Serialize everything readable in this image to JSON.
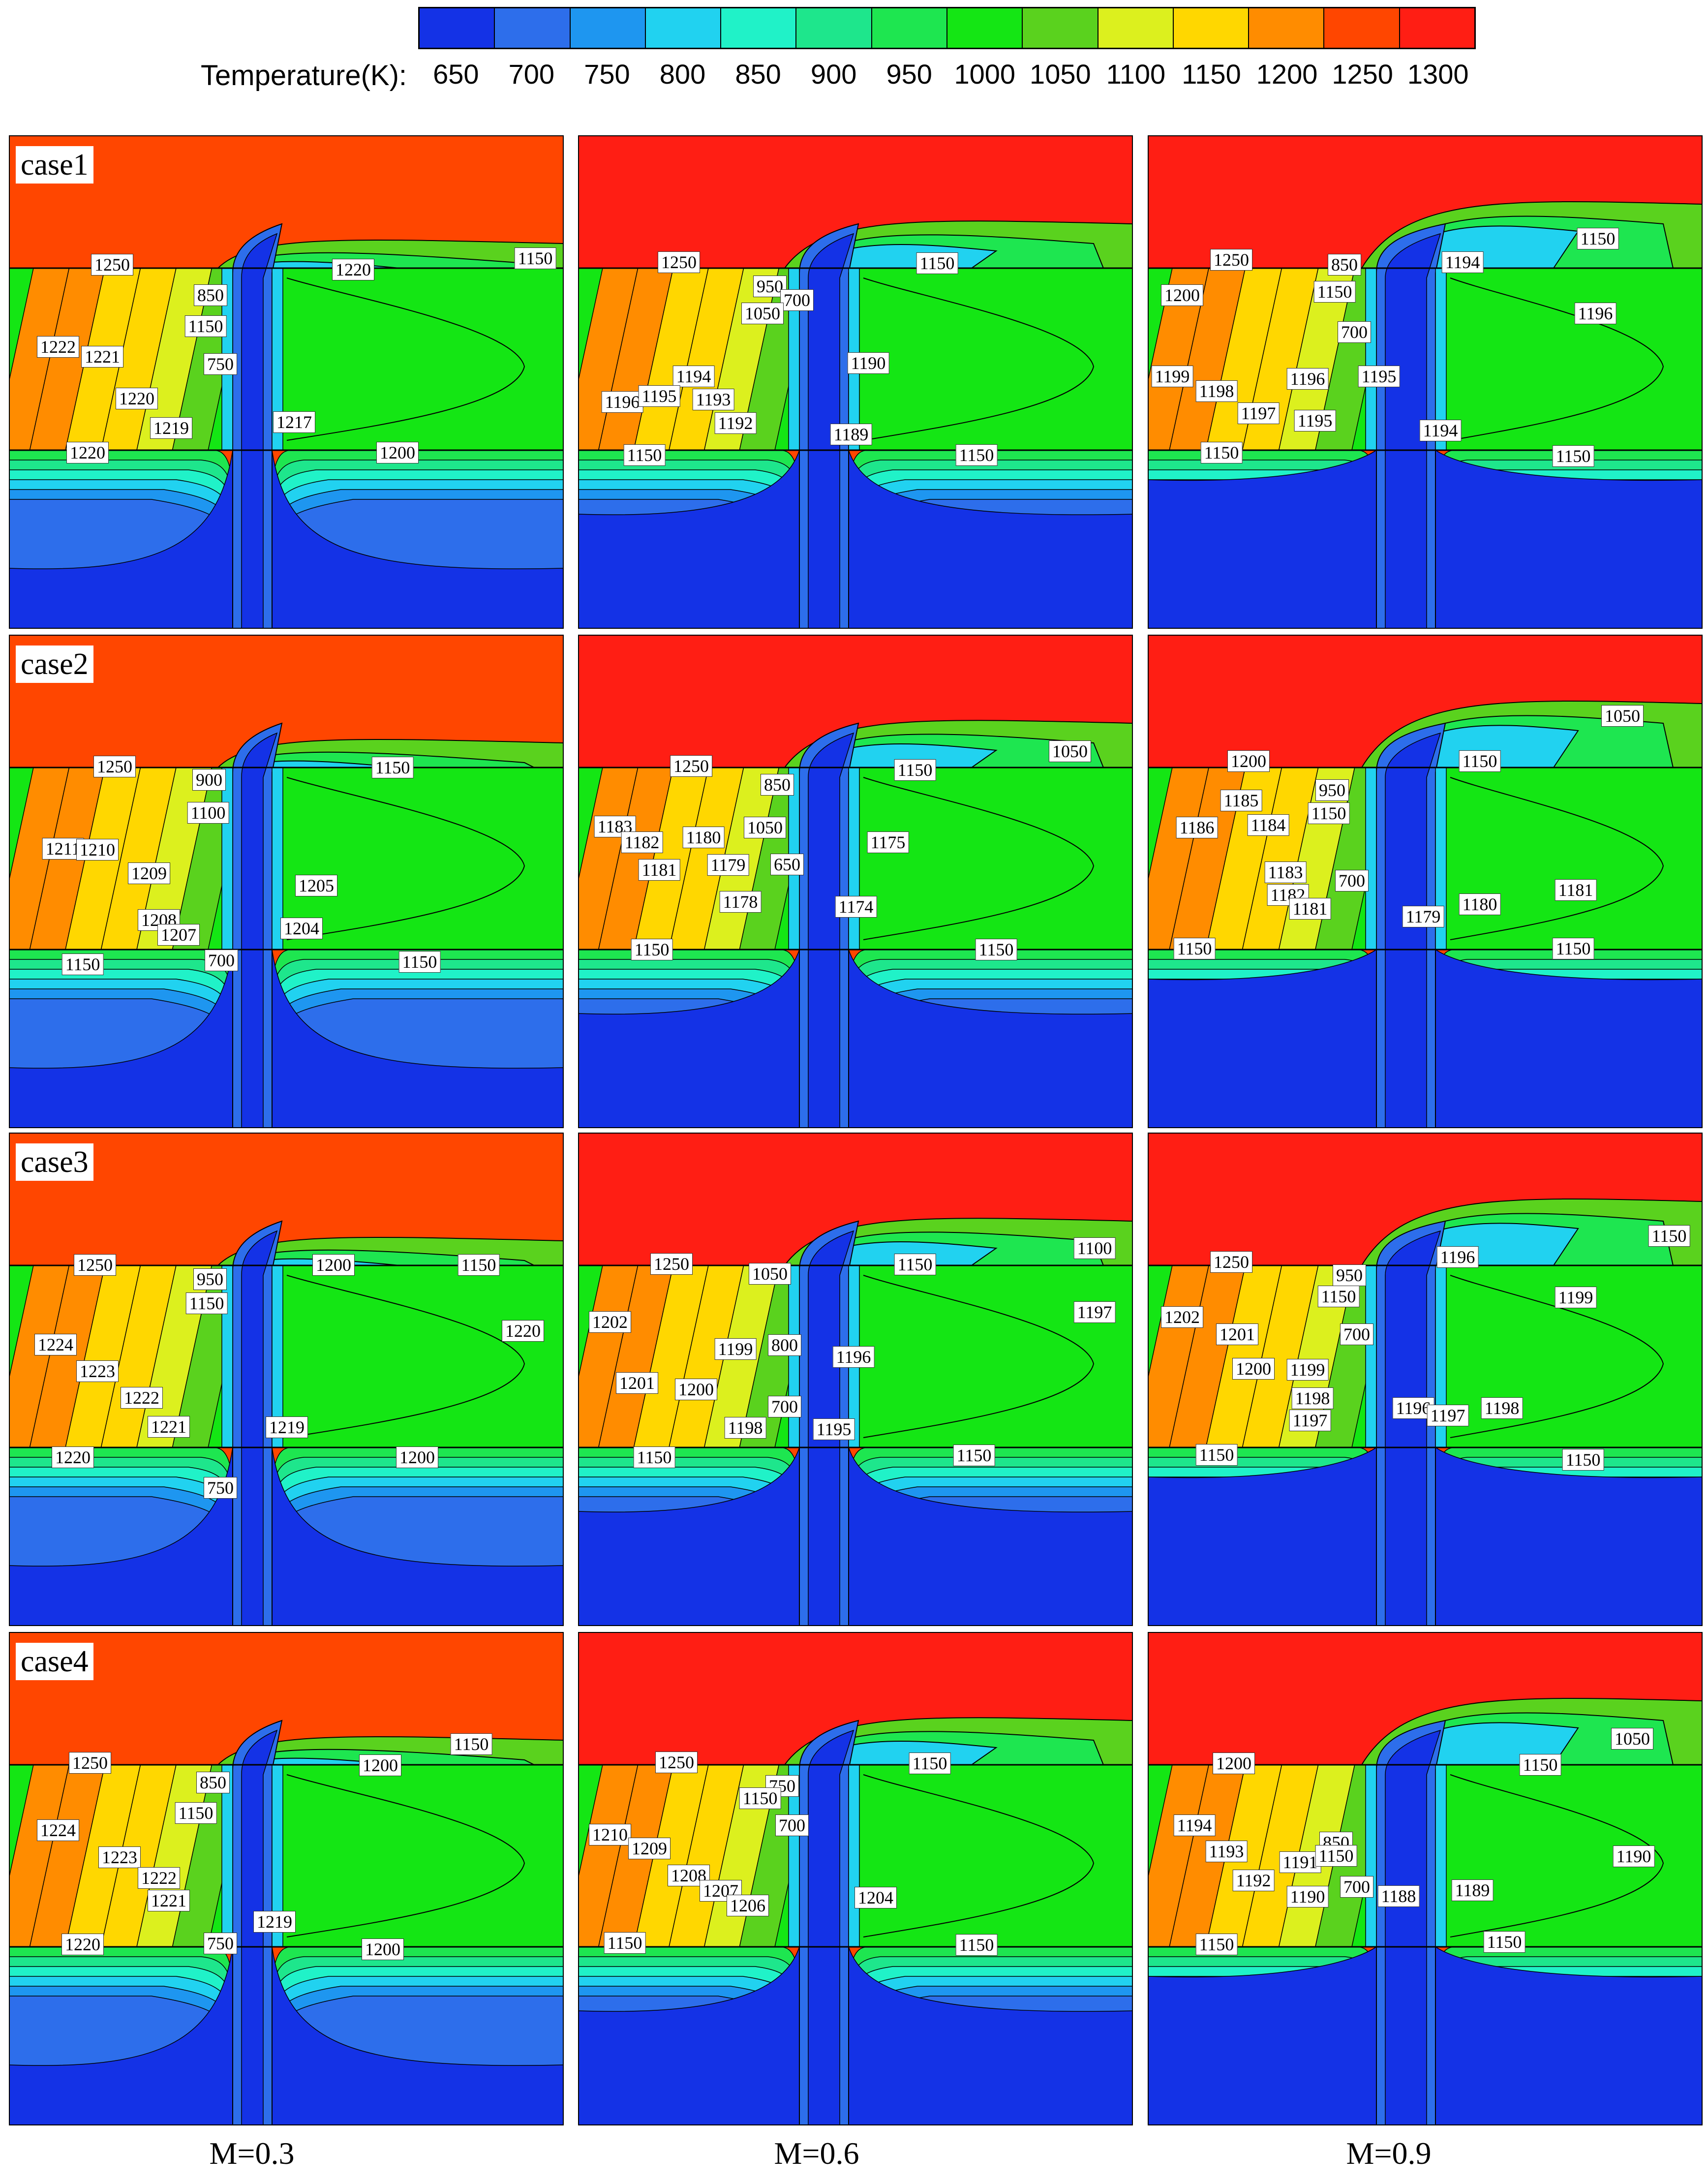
{
  "legend": {
    "title": "Temperature(K):",
    "ticks": [
      "650",
      "700",
      "750",
      "800",
      "850",
      "900",
      "950",
      "1000",
      "1050",
      "1100",
      "1150",
      "1200",
      "1250",
      "1300"
    ],
    "colors": [
      "#1432e6",
      "#2d6eeb",
      "#1e96f0",
      "#21d2f0",
      "#20f2c8",
      "#1ee68c",
      "#1ee650",
      "#14e614",
      "#5ad21e",
      "#dcf01e",
      "#ffd700",
      "#ff8c00",
      "#ff4600",
      "#ff1e14"
    ]
  },
  "columns": [
    "M=0.3",
    "M=0.6",
    "M=0.9"
  ],
  "rows": [
    "case1",
    "case2",
    "case3",
    "case4"
  ],
  "chart_data": {
    "type": "heatmap",
    "title": "",
    "colorbar": {
      "label": "Temperature(K):",
      "min": 650,
      "max": 1300,
      "step": 50
    },
    "panels": [
      {
        "case": "case1",
        "M": "M=0.3",
        "contour_labels": [
          "1250",
          "1220",
          "1150",
          "850",
          "1150",
          "750",
          "1222",
          "1221",
          "1220",
          "1219",
          "1217",
          "1220",
          "1200"
        ]
      },
      {
        "case": "case1",
        "M": "M=0.6",
        "contour_labels": [
          "1250",
          "950",
          "700",
          "1050",
          "1150",
          "1190",
          "1194",
          "1196",
          "1195",
          "1193",
          "1192",
          "1189",
          "1150",
          "1150"
        ]
      },
      {
        "case": "case1",
        "M": "M=0.9",
        "contour_labels": [
          "1250",
          "850",
          "1150",
          "1194",
          "1150",
          "1196",
          "1200",
          "700",
          "1199",
          "1198",
          "1197",
          "1196",
          "1195",
          "1195",
          "1194",
          "1150",
          "1150"
        ]
      },
      {
        "case": "case2",
        "M": "M=0.3",
        "contour_labels": [
          "1250",
          "900",
          "1150",
          "1100",
          "1211",
          "1210",
          "1209",
          "1205",
          "1208",
          "1207",
          "1204",
          "1150",
          "700",
          "1150"
        ]
      },
      {
        "case": "case2",
        "M": "M=0.6",
        "contour_labels": [
          "1250",
          "1150",
          "1050",
          "850",
          "1183",
          "1182",
          "1180",
          "1050",
          "1175",
          "1181",
          "1179",
          "650",
          "1178",
          "1174",
          "1150",
          "1150"
        ]
      },
      {
        "case": "case2",
        "M": "M=0.9",
        "contour_labels": [
          "1200",
          "1050",
          "1150",
          "950",
          "1185",
          "1186",
          "1184",
          "1150",
          "1183",
          "700",
          "1182",
          "1181",
          "1181",
          "1180",
          "1179",
          "1150",
          "1150"
        ]
      },
      {
        "case": "case3",
        "M": "M=0.3",
        "contour_labels": [
          "1250",
          "950",
          "1200",
          "1150",
          "1150",
          "1220",
          "1224",
          "1223",
          "1222",
          "1221",
          "1219",
          "1220",
          "1200",
          "750"
        ]
      },
      {
        "case": "case3",
        "M": "M=0.6",
        "contour_labels": [
          "1250",
          "1050",
          "1150",
          "1100",
          "1202",
          "1197",
          "1199",
          "800",
          "1196",
          "1201",
          "1200",
          "700",
          "1198",
          "1195",
          "1150",
          "1150"
        ]
      },
      {
        "case": "case3",
        "M": "M=0.9",
        "contour_labels": [
          "1250",
          "950",
          "1196",
          "1150",
          "1150",
          "1202",
          "1199",
          "1201",
          "700",
          "1200",
          "1199",
          "1198",
          "1197",
          "1196",
          "1197",
          "1198",
          "1150",
          "1150"
        ]
      },
      {
        "case": "case4",
        "M": "M=0.3",
        "contour_labels": [
          "1150",
          "1250",
          "850",
          "1200",
          "1224",
          "1150",
          "1223",
          "1222",
          "1221",
          "1219",
          "1220",
          "750",
          "1200"
        ]
      },
      {
        "case": "case4",
        "M": "M=0.6",
        "contour_labels": [
          "1250",
          "1150",
          "750",
          "1210",
          "1150",
          "1209",
          "700",
          "1208",
          "1207",
          "1204",
          "1206",
          "1150",
          "1150"
        ]
      },
      {
        "case": "case4",
        "M": "M=0.9",
        "contour_labels": [
          "1200",
          "1050",
          "1150",
          "1194",
          "850",
          "1193",
          "1191",
          "1150",
          "1190",
          "1192",
          "700",
          "1189",
          "1190",
          "1188",
          "1150",
          "1150"
        ]
      }
    ]
  }
}
